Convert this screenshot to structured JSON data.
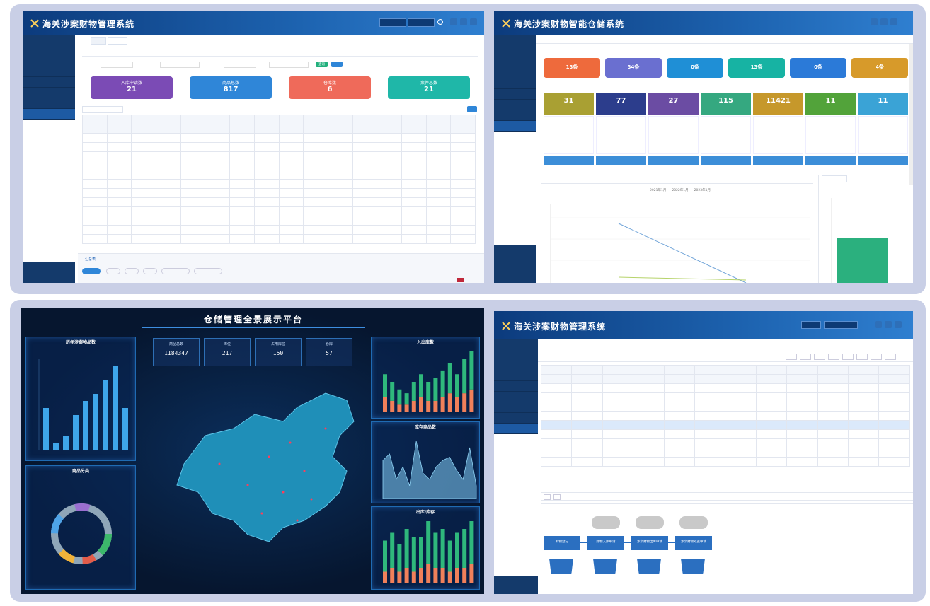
{
  "s1": {
    "title": "海关涉案财物管理系统",
    "stat_cards": [
      {
        "label": "入库申请数",
        "value": "21",
        "color": "#7b4bb5"
      },
      {
        "label": "商品总数",
        "value": "817",
        "color": "#2f86d8"
      },
      {
        "label": "仓库数",
        "value": "6",
        "color": "#ef6a5a"
      },
      {
        "label": "案件总数",
        "value": "21",
        "color": "#1fb7a8"
      }
    ],
    "search_button": "查询",
    "footer_section": "汇总表"
  },
  "s2": {
    "title": "海关涉案财物智能仓储系统",
    "top_cards": [
      {
        "value": "13条",
        "color": "#ee6a3c"
      },
      {
        "value": "34条",
        "color": "#6a6fd0"
      },
      {
        "value": "0条",
        "color": "#1f8fd6"
      },
      {
        "value": "13条",
        "color": "#17b3a3"
      },
      {
        "value": "0条",
        "color": "#2b7ad8"
      },
      {
        "value": "4条",
        "color": "#d79a2a"
      }
    ],
    "kpis": [
      {
        "value": "31",
        "color": "#a9a033"
      },
      {
        "value": "77",
        "color": "#2c3d8c"
      },
      {
        "value": "27",
        "color": "#6b4ca3"
      },
      {
        "value": "115",
        "color": "#35a880"
      },
      {
        "value": "11421",
        "color": "#c6982b"
      },
      {
        "value": "11",
        "color": "#52a33a"
      },
      {
        "value": "11",
        "color": "#3aa3d6"
      }
    ],
    "legend": [
      "2021年1月",
      "2022年1月",
      "2023年1月"
    ]
  },
  "s3": {
    "title": "仓储管理全景展示平台",
    "kpis": [
      {
        "label": "商品总数",
        "value": "1184347"
      },
      {
        "label": "库位",
        "value": "217"
      },
      {
        "label": "占用库位",
        "value": "150"
      },
      {
        "label": "仓库",
        "value": "57"
      }
    ],
    "boxes": {
      "left_top": "历年涉案物品数",
      "left_bottom": "商品分类",
      "right_top": "入出库数",
      "right_mid": "库存商品数",
      "right_bottom": "出库/库存"
    },
    "left_bar_values": [
      6,
      1,
      2,
      5,
      7,
      8,
      10,
      12,
      6
    ],
    "right_top_green": [
      6,
      5,
      4,
      3,
      5,
      6,
      5,
      6,
      7,
      8,
      6,
      9,
      10
    ],
    "right_top_orange": [
      4,
      3,
      2,
      2,
      3,
      4,
      3,
      3,
      4,
      5,
      4,
      5,
      6
    ],
    "right_bottom_green": [
      8,
      9,
      7,
      10,
      9,
      8,
      11,
      9,
      10,
      8,
      9,
      10,
      11
    ],
    "right_bottom_orange": [
      3,
      4,
      3,
      4,
      3,
      4,
      5,
      4,
      4,
      3,
      4,
      4,
      5
    ],
    "right_mid_values": [
      600,
      700,
      300,
      500,
      200,
      900,
      400,
      300,
      500,
      600,
      650,
      450,
      300,
      800,
      200
    ]
  },
  "s4": {
    "title": "海关涉案财物管理系统",
    "flow_steps": [
      "财物登记",
      "财物入库申请",
      "涉案财物出库申请",
      "涉案财物处置申请"
    ]
  }
}
